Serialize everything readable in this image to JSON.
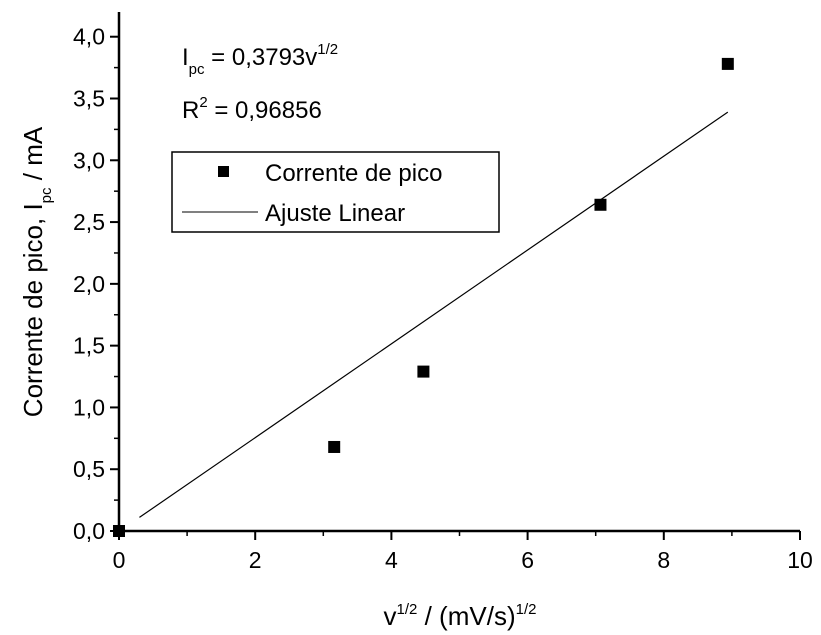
{
  "chart_data": {
    "type": "scatter",
    "xlabel": {
      "base": "v",
      "sup1": "1/2",
      "mid": " / (mV/s)",
      "sup2": "1/2"
    },
    "ylabel": {
      "pre": "Corrente de pico, I",
      "sub": "pc",
      "post": " / mA"
    },
    "xlim": [
      0,
      10
    ],
    "ylim": [
      0,
      4.2
    ],
    "x_ticks": [
      0,
      2,
      4,
      6,
      8,
      10
    ],
    "x_tick_labels": [
      "0",
      "2",
      "4",
      "6",
      "8",
      "10"
    ],
    "y_ticks": [
      0,
      0.5,
      1,
      1.5,
      2,
      2.5,
      3,
      3.5,
      4
    ],
    "y_tick_labels": [
      "0,0",
      "0,5",
      "1,0",
      "1,5",
      "2,0",
      "2,5",
      "3,0",
      "3,5",
      "4,0"
    ],
    "series": [
      {
        "name": "Corrente de pico",
        "kind": "scatter",
        "x": [
          0,
          3.16,
          4.47,
          7.07,
          8.94
        ],
        "y": [
          0,
          0.68,
          1.29,
          2.64,
          3.78
        ]
      },
      {
        "name": "Ajuste Linear",
        "kind": "line",
        "slope": 0.3793,
        "x": [
          0.3,
          8.94
        ],
        "y": [
          0.11,
          3.39
        ]
      }
    ],
    "annotations": {
      "equation": {
        "i": "I",
        "sub": "pc",
        "mid": " = 0,3793v",
        "sup": "1/2"
      },
      "r2": {
        "r": "R",
        "sup": "2",
        "rest": " = 0,96856"
      }
    },
    "legend_position": "upper-left",
    "grid": false
  },
  "colors": {
    "axis": "#000000",
    "marker": "#000000",
    "line": "#000000"
  }
}
